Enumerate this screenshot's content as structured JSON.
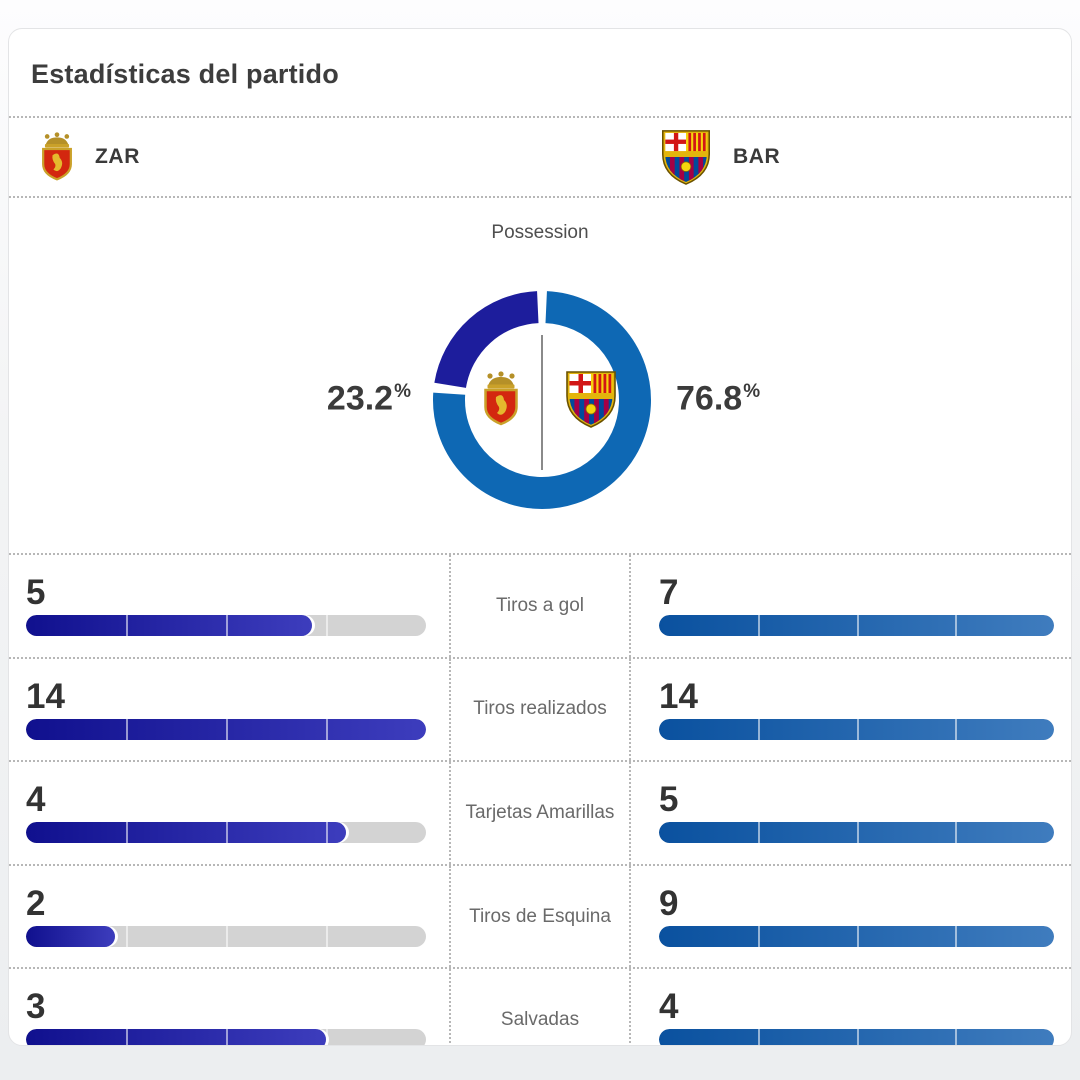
{
  "title": "Estadísticas del partido",
  "teams": {
    "home": {
      "code": "ZAR",
      "name_icon": "zar-crest-icon",
      "accent": "#1d1d9c"
    },
    "away": {
      "code": "BAR",
      "name_icon": "bar-crest-icon",
      "accent": "#0e68b4"
    }
  },
  "chart_data": {
    "possession": {
      "type": "pie",
      "title": "Possession",
      "series": [
        {
          "name": "ZAR",
          "value": 23.2
        },
        {
          "name": "BAR",
          "value": 76.8
        }
      ],
      "labels": {
        "home": "23.2",
        "away": "76.8",
        "suffix": "%"
      },
      "legend_position": "center-badges"
    },
    "match_stats": {
      "type": "bar",
      "categories": [
        "Tiros a gol",
        "Tiros realizados",
        "Tarjetas Amarillas",
        "Tiros de Esquina",
        "Salvadas"
      ],
      "series": [
        {
          "name": "ZAR",
          "values": [
            5,
            14,
            4,
            2,
            3
          ]
        },
        {
          "name": "BAR",
          "values": [
            7,
            14,
            5,
            9,
            4
          ]
        }
      ]
    }
  },
  "stats": {
    "rows": [
      {
        "label": "Tiros a gol",
        "home": 5,
        "away": 7
      },
      {
        "label": "Tiros realizados",
        "home": 14,
        "away": 14
      },
      {
        "label": "Tarjetas Amarillas",
        "home": 4,
        "away": 5
      },
      {
        "label": "Tiros de Esquina",
        "home": 2,
        "away": 9
      },
      {
        "label": "Salvadas",
        "home": 3,
        "away": 4
      }
    ]
  },
  "colors": {
    "home_donut": "#1d1d9c",
    "away_donut": "#0e68b4",
    "home_bar_start": "#10108e",
    "home_bar_end": "#3d3dbd",
    "away_bar_start": "#0a519f",
    "away_bar_end": "#3f7cbe",
    "track": "#d3d3d3"
  }
}
